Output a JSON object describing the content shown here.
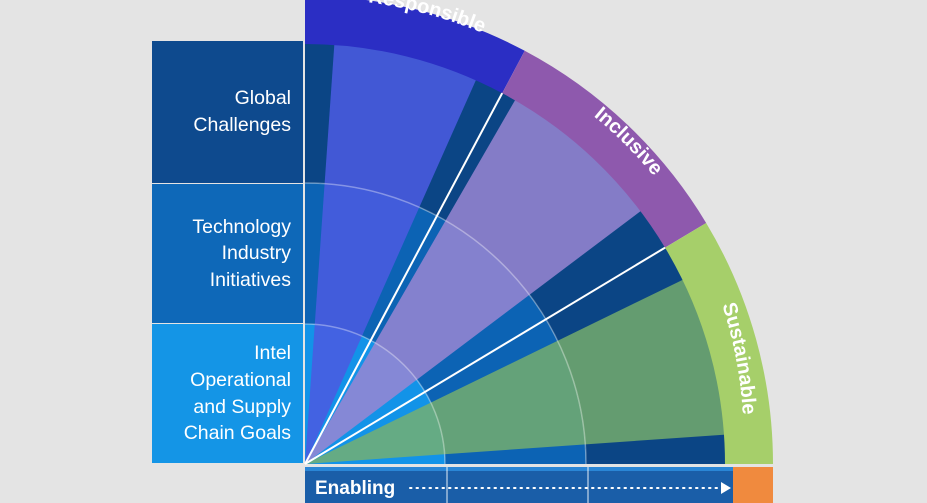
{
  "rows": [
    {
      "label": "Global\nChallenges"
    },
    {
      "label": "Technology\nIndustry\nInitiatives"
    },
    {
      "label": "Intel\nOperational\nand Supply\nChain Goals"
    }
  ],
  "arc_labels": {
    "responsible": "Responsible",
    "inclusive": "Inclusive",
    "sustainable": "Sustainable"
  },
  "bottom_bar": {
    "label": "Enabling"
  },
  "colors": {
    "background": "#e4e4e4",
    "responsible": "#2b2ec4",
    "inclusive": "#8e59ad",
    "sustainable": "#a6cf6a",
    "enabling_accent": "#f08a3e",
    "row_dark": "#0e4a8e",
    "row_mid": "#0e68b8",
    "row_light": "#1495e6"
  }
}
